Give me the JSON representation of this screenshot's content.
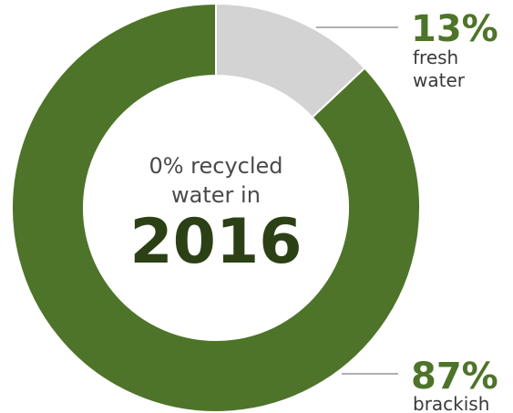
{
  "chart_data": {
    "type": "pie",
    "donut": true,
    "title": "",
    "center_label": {
      "line1": "0% recycled",
      "line2": "water in",
      "year": "2016"
    },
    "slices": [
      {
        "label": "fresh water",
        "label_lines": [
          "fresh",
          "water"
        ],
        "value": 13,
        "value_label": "13%",
        "color": "#d3d3d3"
      },
      {
        "label": "brackish",
        "label_lines": [
          "brackish"
        ],
        "value": 87,
        "value_label": "87%",
        "color": "#4e7429"
      }
    ],
    "legend": "none",
    "start_angle": "12 o'clock",
    "direction": "clockwise"
  },
  "colors": {
    "accent_green": "#4e7429",
    "year_text": "#2c4016",
    "fresh_gray": "#d3d3d3",
    "leader_gray": "#b0b0b0"
  }
}
